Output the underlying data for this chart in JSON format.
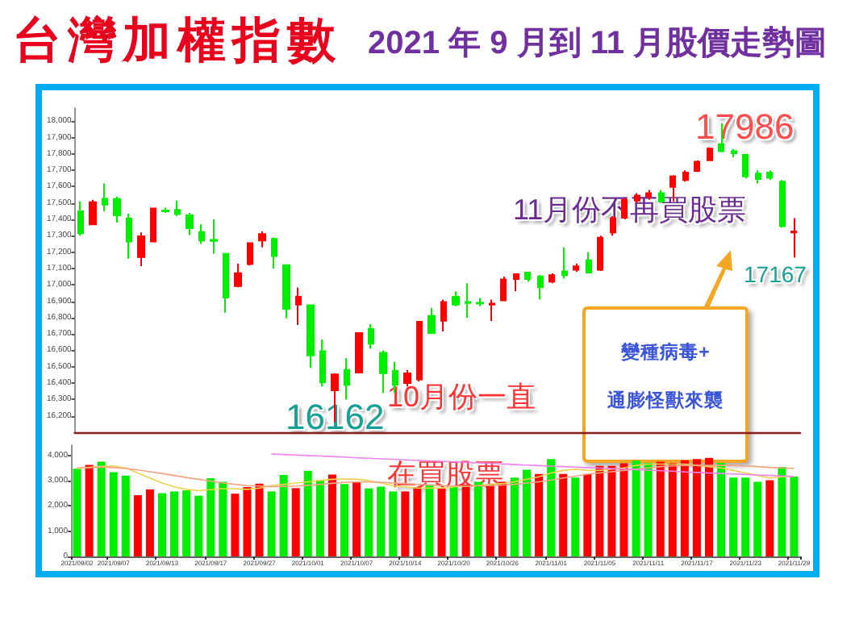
{
  "chart_data": [
    {
      "type": "candlestick",
      "title": "台灣加權指數",
      "subtitle": "2021 年 9 月到 11 月股價走勢圖",
      "tick_labels": "y",
      "categories": [
        "2021/09/02",
        null,
        null,
        "2021/09/07",
        null,
        null,
        null,
        "2021/09/13",
        null,
        null,
        null,
        "2021/09/17",
        null,
        null,
        null,
        "2021/09/27",
        null,
        null,
        null,
        "2021/10/01",
        null,
        null,
        null,
        "2021/10/07",
        null,
        null,
        null,
        "2021/10/14",
        null,
        null,
        null,
        "2021/10/20",
        null,
        null,
        null,
        "2021/10/26",
        null,
        null,
        null,
        "2021/11/01",
        null,
        null,
        null,
        "2021/11/05",
        null,
        null,
        null,
        "2021/11/11",
        null,
        null,
        null,
        "2021/11/17",
        null,
        null,
        null,
        "2021/11/23",
        null,
        null,
        null,
        "2021/11/29"
      ],
      "ohlc": [
        [
          17450,
          17510,
          17300,
          17315
        ],
        [
          17370,
          17520,
          17365,
          17505
        ],
        [
          17526,
          17620,
          17450,
          17490
        ],
        [
          17525,
          17540,
          17380,
          17425
        ],
        [
          17405,
          17435,
          17160,
          17265
        ],
        [
          17170,
          17320,
          17115,
          17297
        ],
        [
          17265,
          17470,
          17260,
          17467
        ],
        [
          17455,
          17470,
          17440,
          17450
        ],
        [
          17458,
          17515,
          17420,
          17432
        ],
        [
          17425,
          17440,
          17304,
          17346
        ],
        [
          17323,
          17370,
          17250,
          17271
        ],
        [
          17275,
          17400,
          17190,
          17268
        ],
        [
          17190,
          17195,
          16830,
          16922
        ],
        [
          16993,
          17130,
          16985,
          17072
        ],
        [
          17127,
          17260,
          17120,
          17255
        ],
        [
          17271,
          17327,
          17229,
          17310
        ],
        [
          17281,
          17290,
          17100,
          17176
        ],
        [
          17121,
          17125,
          16797,
          16853
        ],
        [
          16879,
          16984,
          16755,
          16928
        ],
        [
          16876,
          16880,
          16493,
          16569
        ],
        [
          16595,
          16667,
          16380,
          16405
        ],
        [
          16356,
          16460,
          16162,
          16454
        ],
        [
          16480,
          16552,
          16300,
          16389
        ],
        [
          16464,
          16710,
          16460,
          16706
        ],
        [
          16732,
          16760,
          16610,
          16641
        ],
        [
          16585,
          16600,
          16340,
          16461
        ],
        [
          16474,
          16530,
          16340,
          16389
        ],
        [
          16400,
          16480,
          16380,
          16460
        ],
        [
          16422,
          16780,
          16410,
          16775
        ],
        [
          16810,
          16860,
          16700,
          16706
        ],
        [
          16781,
          16910,
          16716,
          16895
        ],
        [
          16928,
          16960,
          16870,
          16879
        ],
        [
          16895,
          17010,
          16800,
          16889
        ],
        [
          16890,
          16920,
          16870,
          16887
        ],
        [
          16880,
          16910,
          16780,
          16885
        ],
        [
          16905,
          17050,
          16900,
          17033
        ],
        [
          17036,
          17070,
          16961,
          17065
        ],
        [
          17075,
          17080,
          17020,
          17036
        ],
        [
          17052,
          17060,
          16912,
          16987
        ],
        [
          17020,
          17070,
          17010,
          17059
        ],
        [
          17082,
          17229,
          17040,
          17059
        ],
        [
          17092,
          17130,
          17080,
          17114
        ],
        [
          17150,
          17200,
          17070,
          17075
        ],
        [
          17092,
          17300,
          17085,
          17288
        ],
        [
          17320,
          17420,
          17300,
          17408
        ],
        [
          17410,
          17530,
          17400,
          17520
        ],
        [
          17515,
          17560,
          17500,
          17545
        ],
        [
          17540,
          17580,
          17520,
          17560
        ],
        [
          17560,
          17580,
          17500,
          17510
        ],
        [
          17598,
          17670,
          17510,
          17663
        ],
        [
          17640,
          17700,
          17630,
          17686
        ],
        [
          17696,
          17760,
          17690,
          17752
        ],
        [
          17761,
          17840,
          17760,
          17833
        ],
        [
          17859,
          17986,
          17810,
          17817
        ],
        [
          17817,
          17830,
          17780,
          17804
        ],
        [
          17794,
          17800,
          17650,
          17663
        ],
        [
          17680,
          17700,
          17620,
          17647
        ],
        [
          17686,
          17700,
          17640,
          17654
        ],
        [
          17631,
          17640,
          17350,
          17359
        ],
        [
          17320,
          17408,
          17167,
          17327
        ]
      ],
      "colors": [
        "#00ee00",
        "#ff0000",
        "#00ee00",
        "#00ee00",
        "#00ee00",
        "#ff0000",
        "#ff0000",
        "#00ee00",
        "#00ee00",
        "#00ee00",
        "#00ee00",
        "#00ee00",
        "#00ee00",
        "#ff0000",
        "#ff0000",
        "#ff0000",
        "#00ee00",
        "#00ee00",
        "#ff0000",
        "#00ee00",
        "#00ee00",
        "#ff0000",
        "#00ee00",
        "#ff0000",
        "#00ee00",
        "#00ee00",
        "#00ee00",
        "#ff0000",
        "#ff0000",
        "#00ee00",
        "#ff0000",
        "#00ee00",
        "#00ee00",
        "#00ee00",
        "#ff0000",
        "#ff0000",
        "#ff0000",
        "#00ee00",
        "#00ee00",
        "#ff0000",
        "#00ee00",
        "#ff0000",
        "#00ee00",
        "#ff0000",
        "#ff0000",
        "#ff0000",
        "#ff0000",
        "#ff0000",
        "#00ee00",
        "#ff0000",
        "#ff0000",
        "#ff0000",
        "#ff0000",
        "#00ee00",
        "#00ee00",
        "#00ee00",
        "#00ee00",
        "#00ee00",
        "#00ee00",
        "#ff0000"
      ],
      "ylim": [
        16100,
        18080
      ],
      "yticks": [
        {
          "value": 16200,
          "label": "16,200"
        },
        {
          "value": 16300,
          "label": "16,300"
        },
        {
          "value": 16400,
          "label": "16,400"
        },
        {
          "value": 16500,
          "label": "16,500"
        },
        {
          "value": 16600,
          "label": "16,600"
        },
        {
          "value": 16700,
          "label": "16,700"
        },
        {
          "value": 16800,
          "label": "16,800"
        },
        {
          "value": 16900,
          "label": "16,900"
        },
        {
          "value": 17000,
          "label": "17,000"
        },
        {
          "value": 17100,
          "label": "17,100"
        },
        {
          "value": 17200,
          "label": "17,200"
        },
        {
          "value": 17300,
          "label": "17,300"
        },
        {
          "value": 17400,
          "label": "17,400"
        },
        {
          "value": 17500,
          "label": "17,500"
        },
        {
          "value": 17600,
          "label": "17,600"
        },
        {
          "value": 17700,
          "label": "17,700"
        },
        {
          "value": 17800,
          "label": "17,800"
        },
        {
          "value": 17900,
          "label": "17,900"
        },
        {
          "value": 18000,
          "label": "18,000"
        }
      ],
      "annotations": [
        "17986",
        "16162",
        "17167",
        "11月份不再買股票",
        "10月份一直在買股票",
        "變種病毒+",
        "通膨怪獸來襲"
      ]
    },
    {
      "type": "bar",
      "marker": "none",
      "categories": [
        "2021/09/02",
        null,
        null,
        "2021/09/07",
        null,
        null,
        null,
        "2021/09/13",
        null,
        null,
        null,
        "2021/09/17",
        null,
        null,
        null,
        "2021/09/27",
        null,
        null,
        null,
        "2021/10/01",
        null,
        null,
        null,
        "2021/10/07",
        null,
        null,
        null,
        "2021/10/14",
        null,
        null,
        null,
        "2021/10/20",
        null,
        null,
        null,
        "2021/10/26",
        null,
        null,
        null,
        "2021/11/01",
        null,
        null,
        null,
        "2021/11/05",
        null,
        null,
        null,
        "2021/11/11",
        null,
        null,
        null,
        "2021/11/17",
        null,
        null,
        null,
        "2021/11/23",
        null,
        null,
        null,
        "2021/11/29"
      ],
      "series": [
        {
          "type": "bar",
          "values": [
            3470,
            3620,
            3750,
            3330,
            3200,
            2420,
            2650,
            2500,
            2570,
            2610,
            2400,
            3090,
            2950,
            2480,
            2740,
            2880,
            2570,
            3220,
            2700,
            3390,
            3010,
            3240,
            2860,
            2950,
            2690,
            2760,
            2570,
            2570,
            2740,
            2840,
            2690,
            2740,
            2840,
            2950,
            2840,
            2950,
            3120,
            3430,
            3260,
            3850,
            3260,
            3120,
            3260,
            3580,
            3580,
            3680,
            3790,
            3700,
            3750,
            3700,
            3800,
            3850,
            3900,
            3700,
            3120,
            3120,
            2950,
            3010,
            3540,
            3160
          ],
          "colors": [
            "#00ee00",
            "#ff0000",
            "#00ee00",
            "#00ee00",
            "#00ee00",
            "#ff0000",
            "#ff0000",
            "#00ee00",
            "#00ee00",
            "#00ee00",
            "#00ee00",
            "#00ee00",
            "#00ee00",
            "#ff0000",
            "#ff0000",
            "#ff0000",
            "#00ee00",
            "#00ee00",
            "#ff0000",
            "#00ee00",
            "#00ee00",
            "#ff0000",
            "#00ee00",
            "#ff0000",
            "#00ee00",
            "#00ee00",
            "#00ee00",
            "#ff0000",
            "#ff0000",
            "#00ee00",
            "#ff0000",
            "#00ee00",
            "#ff0000",
            "#00ee00",
            "#ff0000",
            "#ff0000",
            "#00ee00",
            "#00ee00",
            "#ff0000",
            "#00ee00",
            "#ff0000",
            "#00ee00",
            "#ff0000",
            "#ff0000",
            "#ff0000",
            "#ff0000",
            "#00ee00",
            "#00ee00",
            "#ff0000",
            "#ff0000",
            "#ff0000",
            "#ff0000",
            "#ff0000",
            "#00ee00",
            "#00ee00",
            "#00ee00",
            "#00ee00",
            "#ff0000",
            "#00ee00",
            "#00ee00"
          ]
        },
        {
          "type": "line",
          "color": "#e8d44d",
          "values": [
            3470,
            3520,
            3560,
            3580,
            3500,
            3300,
            3100,
            2900,
            2750,
            2650,
            2600,
            2640,
            2680,
            2680,
            2650,
            2700,
            2800,
            2850,
            2900,
            2950,
            3000,
            3050,
            3060,
            3050,
            3000,
            2900,
            2800,
            2750,
            2700,
            2700,
            2700,
            2750,
            2780,
            2800,
            2850,
            2880,
            2950,
            3050,
            3150,
            3300,
            3400,
            3450,
            3400,
            3400,
            3450,
            3500,
            3600,
            3650,
            3650,
            3650,
            3650,
            3600,
            3550,
            3500,
            3400,
            3300,
            3200,
            3100,
            3150,
            3160
          ]
        },
        {
          "type": "line",
          "color": "#f4a582",
          "values": [
            3500,
            3520,
            3530,
            3510,
            3480,
            3420,
            3350,
            3280,
            3200,
            3120,
            3050,
            2980,
            2900,
            2850,
            2800,
            2780,
            2760,
            2770,
            2780,
            2810,
            2850,
            2890,
            2930,
            2940,
            2950,
            2930,
            2900,
            2880,
            2850,
            2820,
            2800,
            2790,
            2780,
            2790,
            2800,
            2820,
            2850,
            2900,
            2950,
            3020,
            3100,
            3170,
            3250,
            3300,
            3350,
            3400,
            3450,
            3500,
            3550,
            3580,
            3600,
            3600,
            3600,
            3600,
            3600,
            3580,
            3550,
            3520,
            3500,
            3480
          ]
        },
        {
          "type": "line",
          "color": "#ee82ee",
          "values": [
            null,
            null,
            null,
            null,
            null,
            null,
            null,
            null,
            null,
            null,
            null,
            null,
            null,
            null,
            null,
            null,
            4050,
            4030,
            4010,
            3990,
            3970,
            3950,
            3930,
            3900,
            3880,
            3860,
            3840,
            3820,
            3800,
            3780,
            3760,
            3740,
            3720,
            3700,
            3680,
            3660,
            3630,
            3610,
            3590,
            3570,
            3550,
            3530,
            3510,
            3490,
            3470,
            3450,
            3430,
            3410,
            3390,
            3370,
            3340,
            3320,
            3300,
            3280,
            3260,
            3240,
            3220,
            3200,
            3180,
            3160
          ]
        }
      ],
      "ylim": [
        0,
        4400
      ],
      "yticks": [
        {
          "value": 0,
          "label": "0"
        },
        {
          "value": 1000,
          "label": "1,000"
        },
        {
          "value": 2000,
          "label": "2,000"
        },
        {
          "value": 3000,
          "label": "3,000"
        },
        {
          "value": 4000,
          "label": "4,000"
        }
      ]
    }
  ]
}
